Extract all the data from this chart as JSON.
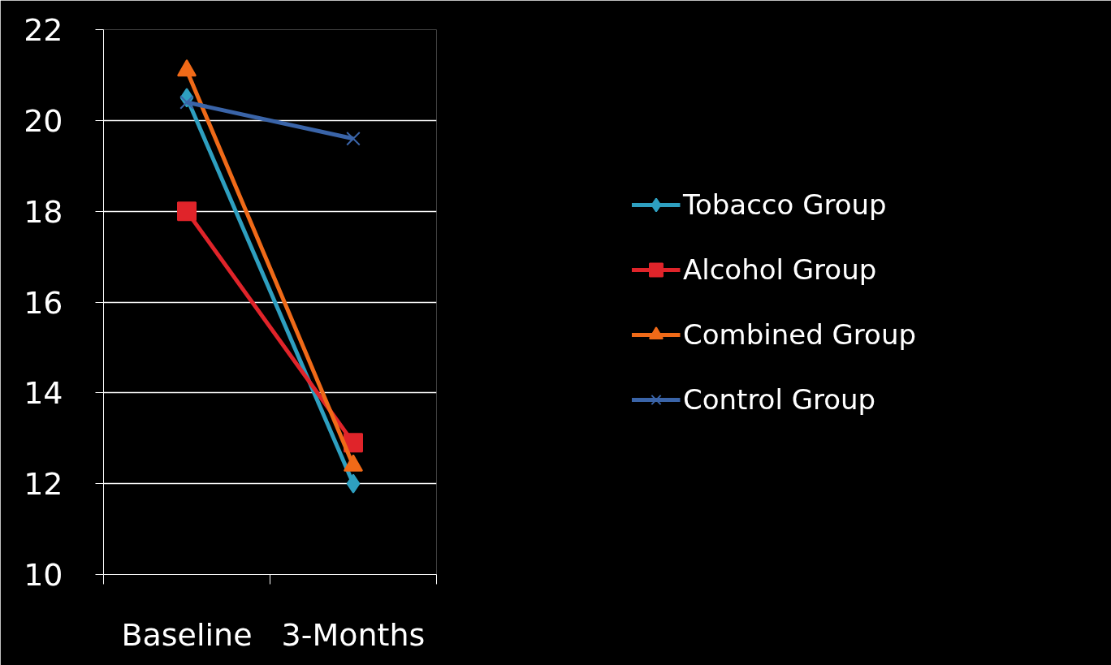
{
  "chart_data": {
    "type": "line",
    "categories": [
      "Baseline",
      "3-Months"
    ],
    "series": [
      {
        "name": "Tobacco Group",
        "color": "#2e9fc0",
        "marker": "diamond",
        "values": [
          20.5,
          12.0
        ]
      },
      {
        "name": "Alcohol Group",
        "color": "#e0242a",
        "marker": "square",
        "values": [
          18.0,
          12.9
        ]
      },
      {
        "name": "Combined Group",
        "color": "#f06a18",
        "marker": "triangle",
        "values": [
          21.1,
          12.4
        ]
      },
      {
        "name": "Control Group",
        "color": "#3a64a8",
        "marker": "cross",
        "values": [
          20.4,
          19.6
        ]
      }
    ],
    "ylim": [
      10,
      22
    ],
    "yticks": [
      10,
      12,
      14,
      16,
      18,
      20,
      22
    ],
    "grid": "y",
    "legend": "right",
    "line_style": "solid"
  }
}
